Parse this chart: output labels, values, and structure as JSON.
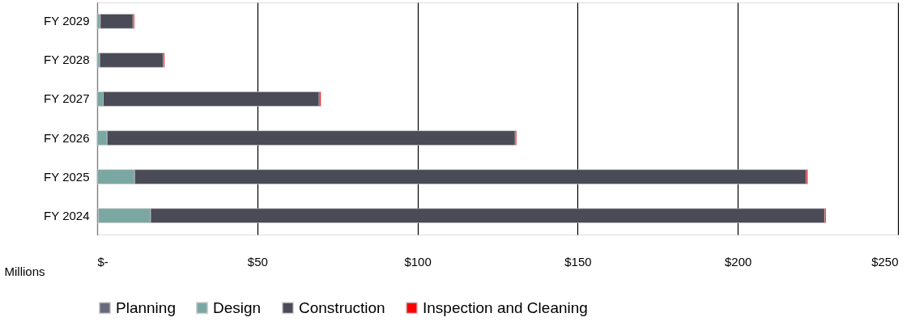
{
  "chart_data": {
    "type": "bar",
    "orientation": "horizontal",
    "stacked": true,
    "categories": [
      "FY 2029",
      "FY 2028",
      "FY 2027",
      "FY 2026",
      "FY 2025",
      "FY 2024"
    ],
    "series": [
      {
        "name": "Planning",
        "color": "#676a7a",
        "values": [
          0,
          0,
          0,
          0,
          0,
          0.4
        ]
      },
      {
        "name": "Design",
        "color": "#7ba7a2",
        "values": [
          1.0,
          0.8,
          1.9,
          3.1,
          11.7,
          16.3
        ]
      },
      {
        "name": "Construction",
        "color": "#4a4b57",
        "values": [
          10.2,
          19.8,
          67.4,
          127.4,
          209.7,
          210.4
        ]
      },
      {
        "name": "Inspection and Cleaning",
        "color": "#ff0000",
        "values": [
          0.4,
          0.4,
          0.5,
          0.4,
          0.4,
          0.4
        ]
      }
    ],
    "xlabel": "Millions",
    "xlim": [
      0,
      250
    ],
    "xticks": [
      {
        "value": 0,
        "label": "$-"
      },
      {
        "value": 50,
        "label": "$50"
      },
      {
        "value": 100,
        "label": "$100"
      },
      {
        "value": 150,
        "label": "$150"
      },
      {
        "value": 200,
        "label": "$200"
      },
      {
        "value": 250,
        "label": "$250"
      }
    ],
    "grid": "x",
    "legend": "bottom"
  }
}
